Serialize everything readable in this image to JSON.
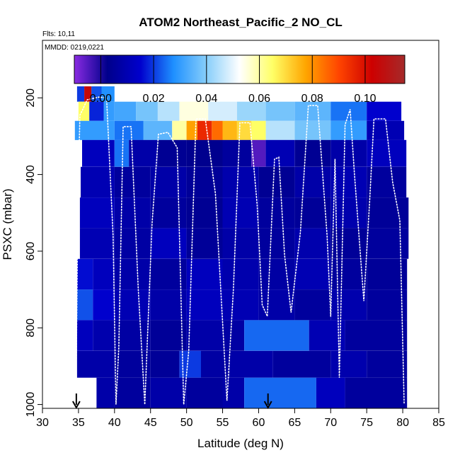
{
  "chart_data": {
    "type": "heatmap",
    "title": "ATOM2 Northeast_Pacific_2 NO_CL",
    "flights_label": "Flts: 10,11",
    "dates_label": "MMDD: 0219,0221",
    "xlabel": "Latitude (deg N)",
    "ylabel": "PSXC (mbar)",
    "xlim": [
      30,
      85
    ],
    "ylim": [
      1010,
      50
    ],
    "y_reversed": true,
    "x_ticks": [
      30,
      35,
      40,
      45,
      50,
      55,
      60,
      65,
      70,
      75,
      80,
      85
    ],
    "x_tick_labels": [
      "30",
      "35",
      "40",
      "45",
      "50",
      "55",
      "60",
      "65",
      "70",
      "75",
      "80",
      "85"
    ],
    "y_ticks": [
      200,
      400,
      600,
      800,
      1000
    ],
    "y_tick_labels": [
      "200",
      "400",
      "600",
      "800",
      "1000"
    ],
    "colorbar": {
      "min": -0.01,
      "max": 0.115,
      "ticks": [
        0.0,
        0.02,
        0.04,
        0.06,
        0.08,
        0.1
      ],
      "tick_labels": [
        "0.00",
        "0.02",
        "0.04",
        "0.06",
        "0.08",
        "0.10"
      ],
      "colors": [
        "#8a2be2",
        "#00008b",
        "#0000cd",
        "#1e90ff",
        "#87cefa",
        "#ffffff",
        "#ffff66",
        "#ffa500",
        "#ff4500",
        "#cd0000",
        "#a52a2a"
      ]
    },
    "pressure_bands": [
      {
        "p": [
          170,
          210
        ],
        "cells": [
          [
            34.8,
            35.8,
            0.02
          ],
          [
            35.8,
            36.8,
            0.105
          ],
          [
            36.8,
            38.2,
            0.022
          ],
          [
            38.2,
            40.0,
            0.028
          ]
        ]
      },
      {
        "p": [
          210,
          260
        ],
        "cells": [
          [
            35.0,
            36.5,
            0.065
          ],
          [
            36.5,
            38.5,
            0.018
          ],
          [
            38.5,
            40.0,
            0.03
          ],
          [
            40.0,
            43.0,
            0.032
          ],
          [
            43.0,
            46.0,
            0.038
          ],
          [
            46.0,
            49.0,
            0.045
          ],
          [
            49.0,
            53.0,
            0.055
          ],
          [
            53.0,
            57.0,
            0.048
          ],
          [
            57.0,
            61.0,
            0.042
          ],
          [
            61.0,
            65.0,
            0.038
          ],
          [
            65.0,
            70.0,
            0.035
          ],
          [
            70.0,
            75.0,
            0.025
          ],
          [
            75.0,
            79.8,
            0.015
          ]
        ]
      },
      {
        "p": [
          260,
          310
        ],
        "cells": [
          [
            34.5,
            40.0,
            0.03
          ],
          [
            40.0,
            44.0,
            0.025
          ],
          [
            44.0,
            48.0,
            0.035
          ],
          [
            48.0,
            50.0,
            0.06
          ],
          [
            50.0,
            51.5,
            0.078
          ],
          [
            51.5,
            53.5,
            0.095
          ],
          [
            53.5,
            55.0,
            0.085
          ],
          [
            55.0,
            57.0,
            0.075
          ],
          [
            57.0,
            59.0,
            0.07
          ],
          [
            59.0,
            61.0,
            0.065
          ],
          [
            61.0,
            65.0,
            0.045
          ],
          [
            65.0,
            70.0,
            0.038
          ],
          [
            70.0,
            75.0,
            0.03
          ],
          [
            75.0,
            80.2,
            0.01
          ]
        ]
      },
      {
        "p": [
          310,
          380
        ],
        "cells": [
          [
            35.5,
            40.0,
            0.012
          ],
          [
            40.0,
            42.0,
            0.025
          ],
          [
            42.0,
            46.0,
            0.008
          ],
          [
            46.0,
            50.0,
            0.004
          ],
          [
            50.0,
            55.0,
            0.003
          ],
          [
            55.0,
            59.0,
            0.006
          ],
          [
            59.0,
            61.0,
            -0.005
          ],
          [
            61.0,
            65.0,
            0.01
          ],
          [
            65.0,
            70.0,
            0.004
          ],
          [
            70.0,
            75.0,
            0.008
          ],
          [
            75.0,
            80.5,
            0.012
          ]
        ]
      },
      {
        "p": [
          380,
          460
        ],
        "cells": [
          [
            35.3,
            40.0,
            0.01
          ],
          [
            40.0,
            45.0,
            0.006
          ],
          [
            45.0,
            50.0,
            0.008
          ],
          [
            50.0,
            55.0,
            0.005
          ],
          [
            55.0,
            60.0,
            0.009
          ],
          [
            60.0,
            65.0,
            0.004
          ],
          [
            65.0,
            70.0,
            0.008
          ],
          [
            70.0,
            75.0,
            0.01
          ],
          [
            75.0,
            80.5,
            0.006
          ]
        ]
      },
      {
        "p": [
          460,
          540
        ],
        "cells": [
          [
            35.2,
            40.0,
            0.012
          ],
          [
            40.0,
            45.0,
            0.008
          ],
          [
            45.0,
            50.0,
            0.006
          ],
          [
            50.0,
            55.0,
            0.004
          ],
          [
            55.0,
            60.0,
            0.01
          ],
          [
            60.0,
            65.0,
            0.006
          ],
          [
            65.0,
            70.0,
            0.005
          ],
          [
            70.0,
            75.0,
            0.009
          ],
          [
            75.0,
            80.8,
            0.005
          ]
        ]
      },
      {
        "p": [
          540,
          620
        ],
        "cells": [
          [
            35.2,
            40.0,
            0.01
          ],
          [
            40.0,
            45.0,
            0.007
          ],
          [
            45.0,
            50.0,
            0.012
          ],
          [
            50.0,
            55.0,
            0.005
          ],
          [
            55.0,
            60.0,
            0.008
          ],
          [
            60.0,
            65.0,
            0.006
          ],
          [
            65.0,
            70.0,
            0.009
          ],
          [
            70.0,
            75.0,
            0.005
          ],
          [
            75.0,
            80.8,
            0.006
          ]
        ]
      },
      {
        "p": [
          620,
          700
        ],
        "cells": [
          [
            34.8,
            37.0,
            0.016
          ],
          [
            37.0,
            40.0,
            0.012
          ],
          [
            40.0,
            45.0,
            0.008
          ],
          [
            45.0,
            50.0,
            0.006
          ],
          [
            50.0,
            55.0,
            0.012
          ],
          [
            55.0,
            60.0,
            0.009
          ],
          [
            60.0,
            65.0,
            0.007
          ],
          [
            65.0,
            70.0,
            0.01
          ],
          [
            70.0,
            75.0,
            0.006
          ],
          [
            75.0,
            80.6,
            0.005
          ]
        ]
      },
      {
        "p": [
          700,
          780
        ],
        "cells": [
          [
            34.8,
            37.0,
            0.022
          ],
          [
            37.0,
            40.0,
            0.015
          ],
          [
            40.0,
            45.0,
            0.01
          ],
          [
            45.0,
            50.0,
            0.008
          ],
          [
            50.0,
            55.0,
            0.012
          ],
          [
            55.0,
            60.0,
            0.01
          ],
          [
            60.0,
            65.0,
            0.008
          ],
          [
            65.0,
            70.0,
            0.006
          ],
          [
            70.0,
            75.0,
            0.009
          ],
          [
            75.0,
            80.6,
            0.006
          ]
        ]
      },
      {
        "p": [
          780,
          860
        ],
        "cells": [
          [
            34.8,
            37.0,
            0.012
          ],
          [
            37.0,
            40.0,
            0.009
          ],
          [
            40.0,
            45.0,
            0.007
          ],
          [
            45.0,
            50.0,
            0.005
          ],
          [
            50.0,
            55.0,
            0.008
          ],
          [
            55.0,
            58.0,
            0.007
          ],
          [
            58.0,
            67.0,
            0.024
          ],
          [
            67.0,
            72.0,
            0.01
          ],
          [
            72.0,
            80.6,
            0.006
          ]
        ]
      },
      {
        "p": [
          860,
          930
        ],
        "cells": [
          [
            34.8,
            40.0,
            0.008
          ],
          [
            40.0,
            45.0,
            0.006
          ],
          [
            45.0,
            49.0,
            0.005
          ],
          [
            49.0,
            52.0,
            0.02
          ],
          [
            52.0,
            56.0,
            0.007
          ],
          [
            56.0,
            62.0,
            0.008
          ],
          [
            62.0,
            70.0,
            0.006
          ],
          [
            70.0,
            75.0,
            0.009
          ],
          [
            75.0,
            80.6,
            0.006
          ]
        ]
      },
      {
        "p": [
          930,
          1010
        ],
        "cells": [
          [
            37.5,
            40.0,
            0.008
          ],
          [
            40.0,
            45.0,
            0.006
          ],
          [
            45.0,
            50.0,
            0.008
          ],
          [
            50.0,
            55.0,
            0.006
          ],
          [
            55.0,
            58.0,
            0.008
          ],
          [
            58.0,
            68.0,
            0.024
          ],
          [
            68.0,
            72.0,
            0.012
          ],
          [
            72.0,
            80.6,
            0.006
          ]
        ]
      }
    ],
    "flight_track": [
      [
        34.7,
        880
      ],
      [
        34.9,
        500
      ],
      [
        35.2,
        245
      ],
      [
        35.6,
        230
      ],
      [
        36.2,
        205
      ],
      [
        37.8,
        198
      ],
      [
        38.9,
        200
      ],
      [
        39.8,
        560
      ],
      [
        40.2,
        1000
      ],
      [
        40.6,
        850
      ],
      [
        41.2,
        275
      ],
      [
        42.3,
        275
      ],
      [
        43.3,
        700
      ],
      [
        44.2,
        1000
      ],
      [
        45.2,
        530
      ],
      [
        46.1,
        295
      ],
      [
        47.4,
        290
      ],
      [
        48.7,
        330
      ],
      [
        49.6,
        1000
      ],
      [
        50.3,
        860
      ],
      [
        51.3,
        255
      ],
      [
        52.6,
        255
      ],
      [
        54.0,
        450
      ],
      [
        55.6,
        990
      ],
      [
        56.5,
        700
      ],
      [
        57.4,
        265
      ],
      [
        58.8,
        265
      ],
      [
        59.8,
        480
      ],
      [
        60.5,
        740
      ],
      [
        61.2,
        770
      ],
      [
        62.2,
        360
      ],
      [
        62.8,
        355
      ],
      [
        63.6,
        610
      ],
      [
        64.5,
        760
      ],
      [
        65.8,
        550
      ],
      [
        66.9,
        220
      ],
      [
        68.2,
        220
      ],
      [
        69.5,
        560
      ],
      [
        70.0,
        770
      ],
      [
        70.6,
        360
      ],
      [
        71.2,
        930
      ],
      [
        72.0,
        270
      ],
      [
        72.7,
        230
      ],
      [
        73.3,
        400
      ],
      [
        74.6,
        730
      ],
      [
        75.4,
        470
      ],
      [
        76.0,
        255
      ],
      [
        77.6,
        255
      ],
      [
        78.6,
        420
      ],
      [
        79.6,
        520
      ],
      [
        80.2,
        1000
      ]
    ],
    "markers": [
      {
        "lat": 34.7,
        "p": 1010
      },
      {
        "lat": 61.3,
        "p": 1010
      }
    ]
  }
}
